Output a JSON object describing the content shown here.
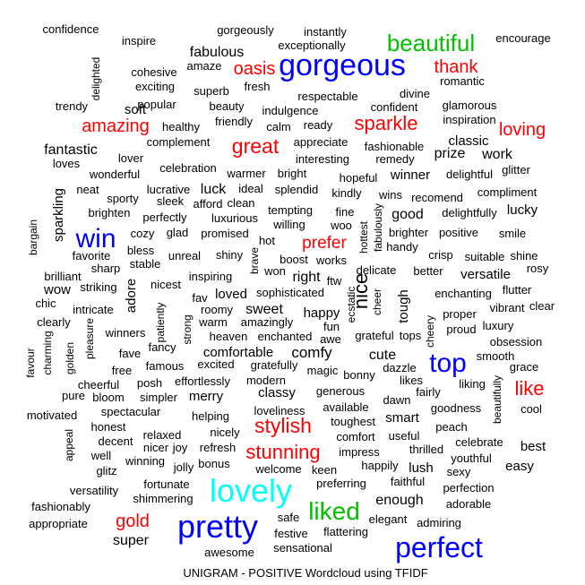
{
  "caption": "UNIGRAM - POSITIVE Wordcloud using TFIDF",
  "palette": {
    "black": "#000000",
    "red": "#ff0000",
    "blue": "#0000ff",
    "green": "#00c000",
    "cyan": "#00ffff",
    "caption": "#000000"
  },
  "words": [
    {
      "text": "gorgeous",
      "color": "blue"
    },
    {
      "text": "pretty",
      "color": "blue"
    },
    {
      "text": "perfect",
      "color": "blue"
    },
    {
      "text": "lovely",
      "color": "cyan"
    },
    {
      "text": "beautiful",
      "color": "green"
    },
    {
      "text": "liked",
      "color": "green"
    },
    {
      "text": "win",
      "color": "blue"
    },
    {
      "text": "top",
      "color": "blue"
    },
    {
      "text": "great",
      "color": "red"
    },
    {
      "text": "stylish",
      "color": "red"
    },
    {
      "text": "stunning",
      "color": "red"
    },
    {
      "text": "sparkle",
      "color": "red"
    },
    {
      "text": "amazing",
      "color": "red"
    },
    {
      "text": "oasis",
      "color": "red"
    },
    {
      "text": "thank",
      "color": "red"
    },
    {
      "text": "loving",
      "color": "red"
    },
    {
      "text": "like",
      "color": "red"
    },
    {
      "text": "prefer",
      "color": "red"
    },
    {
      "text": "gold",
      "color": "red"
    },
    {
      "text": "nice",
      "color": "black"
    },
    {
      "text": "confidence",
      "color": "black"
    },
    {
      "text": "gorgeously",
      "color": "black"
    },
    {
      "text": "instantly",
      "color": "black"
    },
    {
      "text": "inspire",
      "color": "black"
    },
    {
      "text": "exceptionally",
      "color": "black"
    },
    {
      "text": "encourage",
      "color": "black"
    },
    {
      "text": "fabulous",
      "color": "black"
    },
    {
      "text": "delighted",
      "color": "black"
    },
    {
      "text": "amaze",
      "color": "black"
    },
    {
      "text": "cohesive",
      "color": "black"
    },
    {
      "text": "romantic",
      "color": "black"
    },
    {
      "text": "exciting",
      "color": "black"
    },
    {
      "text": "superb",
      "color": "black"
    },
    {
      "text": "fresh",
      "color": "black"
    },
    {
      "text": "divine",
      "color": "black"
    },
    {
      "text": "respectable",
      "color": "black"
    },
    {
      "text": "trendy",
      "color": "black"
    },
    {
      "text": "popular",
      "color": "black"
    },
    {
      "text": "beauty",
      "color": "black"
    },
    {
      "text": "indulgence",
      "color": "black"
    },
    {
      "text": "confident",
      "color": "black"
    },
    {
      "text": "glamorous",
      "color": "black"
    },
    {
      "text": "soft",
      "color": "black"
    },
    {
      "text": "inspiration",
      "color": "black"
    },
    {
      "text": "healthy",
      "color": "black"
    },
    {
      "text": "friendly",
      "color": "black"
    },
    {
      "text": "calm",
      "color": "black"
    },
    {
      "text": "ready",
      "color": "black"
    },
    {
      "text": "complement",
      "color": "black"
    },
    {
      "text": "appreciate",
      "color": "black"
    },
    {
      "text": "fashionable",
      "color": "black"
    },
    {
      "text": "classic",
      "color": "black"
    },
    {
      "text": "fantastic",
      "color": "black"
    },
    {
      "text": "lover",
      "color": "black"
    },
    {
      "text": "interesting",
      "color": "black"
    },
    {
      "text": "remedy",
      "color": "black"
    },
    {
      "text": "prize",
      "color": "black"
    },
    {
      "text": "work",
      "color": "black"
    },
    {
      "text": "loves",
      "color": "black"
    },
    {
      "text": "celebration",
      "color": "black"
    },
    {
      "text": "warmer",
      "color": "black"
    },
    {
      "text": "bright",
      "color": "black"
    },
    {
      "text": "delightful",
      "color": "black"
    },
    {
      "text": "glitter",
      "color": "black"
    },
    {
      "text": "wonderful",
      "color": "black"
    },
    {
      "text": "hopeful",
      "color": "black"
    },
    {
      "text": "winner",
      "color": "black"
    },
    {
      "text": "neat",
      "color": "black"
    },
    {
      "text": "lucrative",
      "color": "black"
    },
    {
      "text": "luck",
      "color": "black"
    },
    {
      "text": "ideal",
      "color": "black"
    },
    {
      "text": "splendid",
      "color": "black"
    },
    {
      "text": "kindly",
      "color": "black"
    },
    {
      "text": "wins",
      "color": "black"
    },
    {
      "text": "recomend",
      "color": "black"
    },
    {
      "text": "compliment",
      "color": "black"
    },
    {
      "text": "sparkling",
      "color": "black"
    },
    {
      "text": "sporty",
      "color": "black"
    },
    {
      "text": "sleek",
      "color": "black"
    },
    {
      "text": "afford",
      "color": "black"
    },
    {
      "text": "clean",
      "color": "black"
    },
    {
      "text": "tempting",
      "color": "black"
    },
    {
      "text": "fine",
      "color": "black"
    },
    {
      "text": "good",
      "color": "black"
    },
    {
      "text": "delightfully",
      "color": "black"
    },
    {
      "text": "lucky",
      "color": "black"
    },
    {
      "text": "brighten",
      "color": "black"
    },
    {
      "text": "perfectly",
      "color": "black"
    },
    {
      "text": "luxurious",
      "color": "black"
    },
    {
      "text": "willing",
      "color": "black"
    },
    {
      "text": "woo",
      "color": "black"
    },
    {
      "text": "hottest",
      "color": "black"
    },
    {
      "text": "fabulously",
      "color": "black"
    },
    {
      "text": "brighter",
      "color": "black"
    },
    {
      "text": "positive",
      "color": "black"
    },
    {
      "text": "bargain",
      "color": "black"
    },
    {
      "text": "cozy",
      "color": "black"
    },
    {
      "text": "glad",
      "color": "black"
    },
    {
      "text": "promised",
      "color": "black"
    },
    {
      "text": "hot",
      "color": "black"
    },
    {
      "text": "smile",
      "color": "black"
    },
    {
      "text": "bless",
      "color": "black"
    },
    {
      "text": "shiny",
      "color": "black"
    },
    {
      "text": "handy",
      "color": "black"
    },
    {
      "text": "favorite",
      "color": "black"
    },
    {
      "text": "unreal",
      "color": "black"
    },
    {
      "text": "stable",
      "color": "black"
    },
    {
      "text": "boost",
      "color": "black"
    },
    {
      "text": "crisp",
      "color": "black"
    },
    {
      "text": "suitable",
      "color": "black"
    },
    {
      "text": "shine",
      "color": "black"
    },
    {
      "text": "sharp",
      "color": "black"
    },
    {
      "text": "brave",
      "color": "black"
    },
    {
      "text": "won",
      "color": "black"
    },
    {
      "text": "works",
      "color": "black"
    },
    {
      "text": "delicate",
      "color": "black"
    },
    {
      "text": "better",
      "color": "black"
    },
    {
      "text": "rosy",
      "color": "black"
    },
    {
      "text": "brilliant",
      "color": "black"
    },
    {
      "text": "nicest",
      "color": "black"
    },
    {
      "text": "inspiring",
      "color": "black"
    },
    {
      "text": "right",
      "color": "black"
    },
    {
      "text": "ftw",
      "color": "black"
    },
    {
      "text": "versatile",
      "color": "black"
    },
    {
      "text": "wow",
      "color": "black"
    },
    {
      "text": "striking",
      "color": "black"
    },
    {
      "text": "adore",
      "color": "black"
    },
    {
      "text": "fav",
      "color": "black"
    },
    {
      "text": "loved",
      "color": "black"
    },
    {
      "text": "sophisticated",
      "color": "black"
    },
    {
      "text": "ecstatic",
      "color": "black"
    },
    {
      "text": "cheer",
      "color": "black"
    },
    {
      "text": "tough",
      "color": "black"
    },
    {
      "text": "enchanting",
      "color": "black"
    },
    {
      "text": "flutter",
      "color": "black"
    },
    {
      "text": "chic",
      "color": "black"
    },
    {
      "text": "intricate",
      "color": "black"
    },
    {
      "text": "roomy",
      "color": "black"
    },
    {
      "text": "sweet",
      "color": "black"
    },
    {
      "text": "happy",
      "color": "black"
    },
    {
      "text": "cheery",
      "color": "black"
    },
    {
      "text": "vibrant",
      "color": "black"
    },
    {
      "text": "clear",
      "color": "black"
    },
    {
      "text": "clearly",
      "color": "black"
    },
    {
      "text": "patiently",
      "color": "black"
    },
    {
      "text": "warm",
      "color": "black"
    },
    {
      "text": "amazingly",
      "color": "black"
    },
    {
      "text": "proper",
      "color": "black"
    },
    {
      "text": "luxury",
      "color": "black"
    },
    {
      "text": "pleasure",
      "color": "black"
    },
    {
      "text": "strong",
      "color": "black"
    },
    {
      "text": "winners",
      "color": "black"
    },
    {
      "text": "heaven",
      "color": "black"
    },
    {
      "text": "enchanted",
      "color": "black"
    },
    {
      "text": "fun",
      "color": "black"
    },
    {
      "text": "grateful",
      "color": "black"
    },
    {
      "text": "tops",
      "color": "black"
    },
    {
      "text": "proud",
      "color": "black"
    },
    {
      "text": "obsession",
      "color": "black"
    },
    {
      "text": "favour",
      "color": "black"
    },
    {
      "text": "charming",
      "color": "black"
    },
    {
      "text": "golden",
      "color": "black"
    },
    {
      "text": "fancy",
      "color": "black"
    },
    {
      "text": "awe",
      "color": "black"
    },
    {
      "text": "comfortable",
      "color": "black"
    },
    {
      "text": "comfy",
      "color": "black"
    },
    {
      "text": "cute",
      "color": "black"
    },
    {
      "text": "smooth",
      "color": "black"
    },
    {
      "text": "fave",
      "color": "black"
    },
    {
      "text": "famous",
      "color": "black"
    },
    {
      "text": "excited",
      "color": "black"
    },
    {
      "text": "gratefully",
      "color": "black"
    },
    {
      "text": "magic",
      "color": "black"
    },
    {
      "text": "bonny",
      "color": "black"
    },
    {
      "text": "dazzle",
      "color": "black"
    },
    {
      "text": "grace",
      "color": "black"
    },
    {
      "text": "cheerful",
      "color": "black"
    },
    {
      "text": "free",
      "color": "black"
    },
    {
      "text": "posh",
      "color": "black"
    },
    {
      "text": "effortlessly",
      "color": "black"
    },
    {
      "text": "modern",
      "color": "black"
    },
    {
      "text": "likes",
      "color": "black"
    },
    {
      "text": "liking",
      "color": "black"
    },
    {
      "text": "pure",
      "color": "black"
    },
    {
      "text": "bloom",
      "color": "black"
    },
    {
      "text": "simpler",
      "color": "black"
    },
    {
      "text": "merry",
      "color": "black"
    },
    {
      "text": "classy",
      "color": "black"
    },
    {
      "text": "generous",
      "color": "black"
    },
    {
      "text": "fairly",
      "color": "black"
    },
    {
      "text": "beautifully",
      "color": "black"
    },
    {
      "text": "spectacular",
      "color": "black"
    },
    {
      "text": "dawn",
      "color": "black"
    },
    {
      "text": "available",
      "color": "black"
    },
    {
      "text": "goodness",
      "color": "black"
    },
    {
      "text": "cool",
      "color": "black"
    },
    {
      "text": "motivated",
      "color": "black"
    },
    {
      "text": "helping",
      "color": "black"
    },
    {
      "text": "loveliness",
      "color": "black"
    },
    {
      "text": "toughest",
      "color": "black"
    },
    {
      "text": "smart",
      "color": "black"
    },
    {
      "text": "honest",
      "color": "black"
    },
    {
      "text": "peach",
      "color": "black"
    },
    {
      "text": "relaxed",
      "color": "black"
    },
    {
      "text": "nicely",
      "color": "black"
    },
    {
      "text": "comfort",
      "color": "black"
    },
    {
      "text": "useful",
      "color": "black"
    },
    {
      "text": "appeal",
      "color": "black"
    },
    {
      "text": "decent",
      "color": "black"
    },
    {
      "text": "nicer",
      "color": "black"
    },
    {
      "text": "joy",
      "color": "black"
    },
    {
      "text": "refresh",
      "color": "black"
    },
    {
      "text": "impress",
      "color": "black"
    },
    {
      "text": "thrilled",
      "color": "black"
    },
    {
      "text": "celebrate",
      "color": "black"
    },
    {
      "text": "best",
      "color": "black"
    },
    {
      "text": "well",
      "color": "black"
    },
    {
      "text": "winning",
      "color": "black"
    },
    {
      "text": "bonus",
      "color": "black"
    },
    {
      "text": "youthful",
      "color": "black"
    },
    {
      "text": "glitz",
      "color": "black"
    },
    {
      "text": "jolly",
      "color": "black"
    },
    {
      "text": "welcome",
      "color": "black"
    },
    {
      "text": "keen",
      "color": "black"
    },
    {
      "text": "happily",
      "color": "black"
    },
    {
      "text": "lush",
      "color": "black"
    },
    {
      "text": "sexy",
      "color": "black"
    },
    {
      "text": "easy",
      "color": "black"
    },
    {
      "text": "fortunate",
      "color": "black"
    },
    {
      "text": "preferring",
      "color": "black"
    },
    {
      "text": "faithful",
      "color": "black"
    },
    {
      "text": "versatility",
      "color": "black"
    },
    {
      "text": "perfection",
      "color": "black"
    },
    {
      "text": "shimmering",
      "color": "black"
    },
    {
      "text": "enough",
      "color": "black"
    },
    {
      "text": "fashionably",
      "color": "black"
    },
    {
      "text": "adorable",
      "color": "black"
    },
    {
      "text": "safe",
      "color": "black"
    },
    {
      "text": "appropriate",
      "color": "black"
    },
    {
      "text": "elegant",
      "color": "black"
    },
    {
      "text": "admiring",
      "color": "black"
    },
    {
      "text": "festive",
      "color": "black"
    },
    {
      "text": "flattering",
      "color": "black"
    },
    {
      "text": "super",
      "color": "black"
    },
    {
      "text": "awesome",
      "color": "black"
    },
    {
      "text": "sensational",
      "color": "black"
    }
  ]
}
